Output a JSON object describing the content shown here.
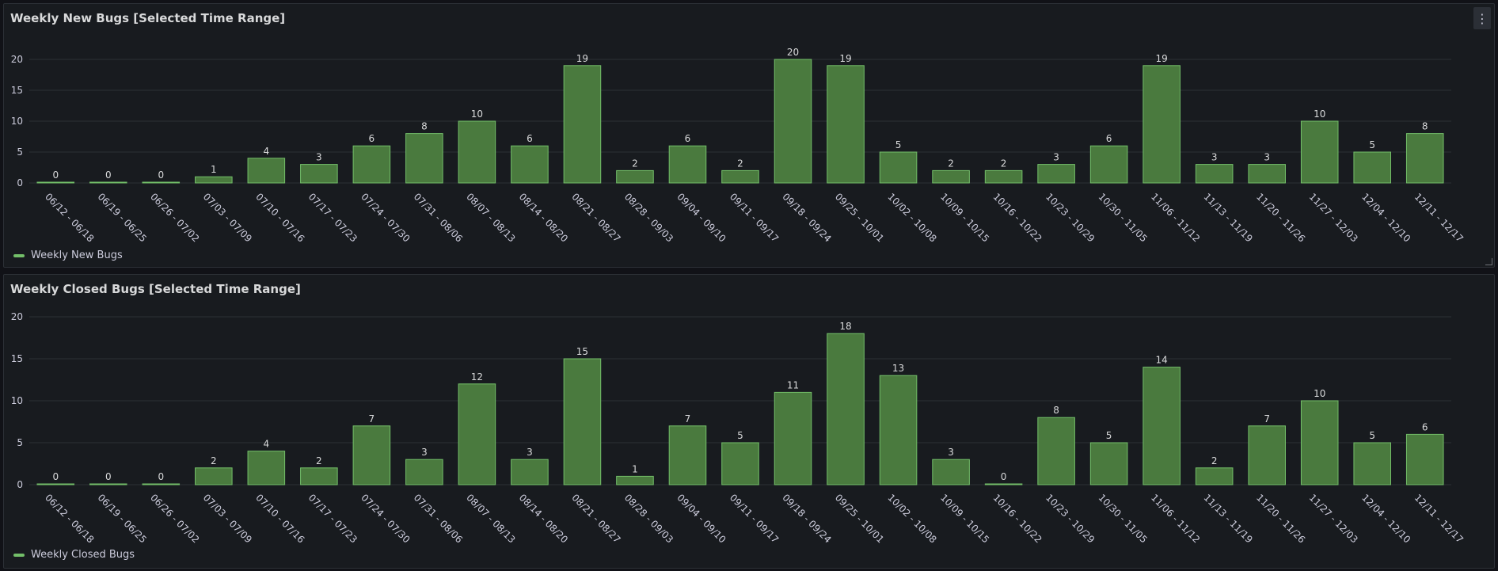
{
  "colors": {
    "bar_fill": "#4a7a3e",
    "bar_stroke": "#73bf69",
    "legend_swatch": "#73bf69",
    "grid": "#2c3036",
    "text": "#ccccdc"
  },
  "menu_icon": "⋮",
  "chart_data": [
    {
      "type": "bar",
      "title": "Weekly New Bugs [Selected Time Range]",
      "categories": [
        "06/12 - 06/18",
        "06/19 - 06/25",
        "06/26 - 07/02",
        "07/03 - 07/09",
        "07/10 - 07/16",
        "07/17 - 07/23",
        "07/24 - 07/30",
        "07/31 - 08/06",
        "08/07 - 08/13",
        "08/14 - 08/20",
        "08/21 - 08/27",
        "08/28 - 09/03",
        "09/04 - 09/10",
        "09/11 - 09/17",
        "09/18 - 09/24",
        "09/25 - 10/01",
        "10/02 - 10/08",
        "10/09 - 10/15",
        "10/16 - 10/22",
        "10/23 - 10/29",
        "10/30 - 11/05",
        "11/06 - 11/12",
        "11/13 - 11/19",
        "11/20 - 11/26",
        "11/27 - 12/03",
        "12/04 - 12/10",
        "12/11 - 12/17"
      ],
      "series": [
        {
          "name": "Weekly New Bugs",
          "values": [
            0,
            0,
            0,
            1,
            4,
            3,
            6,
            8,
            10,
            6,
            19,
            2,
            6,
            2,
            20,
            19,
            5,
            2,
            2,
            3,
            6,
            19,
            3,
            3,
            10,
            5,
            8
          ]
        }
      ],
      "yticks": [
        0,
        5,
        10,
        15,
        20
      ],
      "ylim": [
        0,
        20
      ],
      "grid": true,
      "legend": "bottom-left"
    },
    {
      "type": "bar",
      "title": "Weekly Closed Bugs [Selected Time Range]",
      "categories": [
        "06/12 - 06/18",
        "06/19 - 06/25",
        "06/26 - 07/02",
        "07/03 - 07/09",
        "07/10 - 07/16",
        "07/17 - 07/23",
        "07/24 - 07/30",
        "07/31 - 08/06",
        "08/07 - 08/13",
        "08/14 - 08/20",
        "08/21 - 08/27",
        "08/28 - 09/03",
        "09/04 - 09/10",
        "09/11 - 09/17",
        "09/18 - 09/24",
        "09/25 - 10/01",
        "10/02 - 10/08",
        "10/09 - 10/15",
        "10/16 - 10/22",
        "10/23 - 10/29",
        "10/30 - 11/05",
        "11/06 - 11/12",
        "11/13 - 11/19",
        "11/20 - 11/26",
        "11/27 - 12/03",
        "12/04 - 12/10",
        "12/11 - 12/17"
      ],
      "series": [
        {
          "name": "Weekly Closed Bugs",
          "values": [
            0,
            0,
            0,
            2,
            4,
            2,
            7,
            3,
            12,
            3,
            15,
            1,
            7,
            5,
            11,
            18,
            13,
            3,
            0,
            8,
            5,
            14,
            2,
            7,
            10,
            5,
            6
          ]
        }
      ],
      "yticks": [
        0,
        5,
        10,
        15,
        20
      ],
      "ylim": [
        0,
        20
      ],
      "grid": true,
      "legend": "bottom-left"
    }
  ]
}
